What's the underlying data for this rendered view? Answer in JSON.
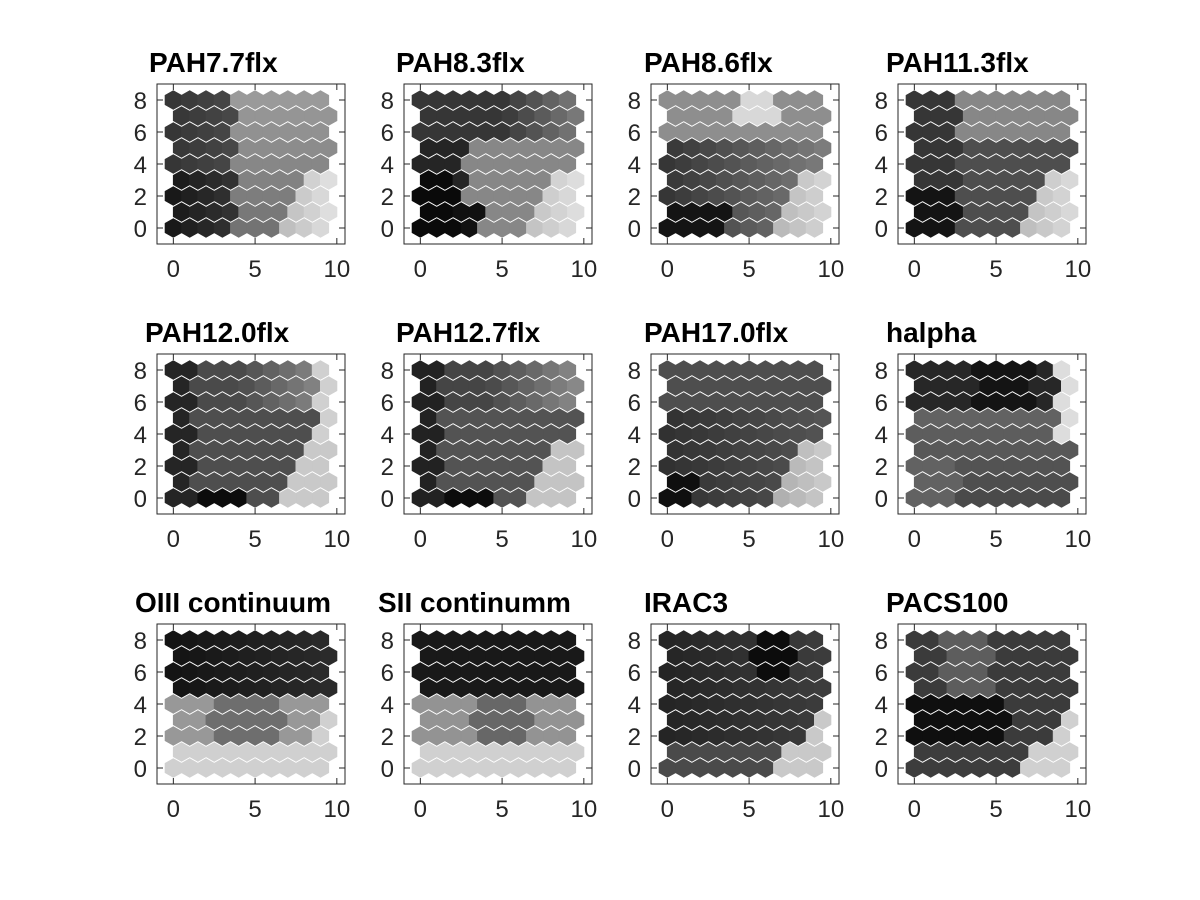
{
  "chart_data": {
    "type": "heatmap",
    "colormap": "gray",
    "grid": false,
    "panels": [
      {
        "title": "PAH7.7flx",
        "xlim": [
          -1,
          10.5
        ],
        "ylim": [
          -1,
          9
        ],
        "xticks": [
          0,
          5,
          10
        ],
        "yticks": [
          0,
          2,
          4,
          6,
          8
        ]
      },
      {
        "title": "PAH8.3flx",
        "xlim": [
          -1,
          10.5
        ],
        "ylim": [
          -1,
          9
        ],
        "xticks": [
          0,
          5,
          10
        ],
        "yticks": [
          0,
          2,
          4,
          6,
          8
        ]
      },
      {
        "title": "PAH8.6flx",
        "xlim": [
          -1,
          10.5
        ],
        "ylim": [
          -1,
          9
        ],
        "xticks": [
          0,
          5,
          10
        ],
        "yticks": [
          0,
          2,
          4,
          6,
          8
        ]
      },
      {
        "title": "PAH11.3flx",
        "xlim": [
          -1,
          10.5
        ],
        "ylim": [
          -1,
          9
        ],
        "xticks": [
          0,
          5,
          10
        ],
        "yticks": [
          0,
          2,
          4,
          6,
          8
        ]
      },
      {
        "title": "PAH12.0flx",
        "xlim": [
          -1,
          10.5
        ],
        "ylim": [
          -1,
          9
        ],
        "xticks": [
          0,
          5,
          10
        ],
        "yticks": [
          0,
          2,
          4,
          6,
          8
        ]
      },
      {
        "title": "PAH12.7flx",
        "xlim": [
          -1,
          10.5
        ],
        "ylim": [
          -1,
          9
        ],
        "xticks": [
          0,
          5,
          10
        ],
        "yticks": [
          0,
          2,
          4,
          6,
          8
        ]
      },
      {
        "title": "PAH17.0flx",
        "xlim": [
          -1,
          10.5
        ],
        "ylim": [
          -1,
          9
        ],
        "xticks": [
          0,
          5,
          10
        ],
        "yticks": [
          0,
          2,
          4,
          6,
          8
        ]
      },
      {
        "title": "halpha",
        "xlim": [
          -1,
          10.5
        ],
        "ylim": [
          -1,
          9
        ],
        "xticks": [
          0,
          5,
          10
        ],
        "yticks": [
          0,
          2,
          4,
          6,
          8
        ]
      },
      {
        "title": "OIII continuum",
        "xlim": [
          -1,
          10.5
        ],
        "ylim": [
          -1,
          9
        ],
        "xticks": [
          0,
          5,
          10
        ],
        "yticks": [
          0,
          2,
          4,
          6,
          8
        ]
      },
      {
        "title": "SII continumm",
        "xlim": [
          -1,
          10.5
        ],
        "ylim": [
          -1,
          9
        ],
        "xticks": [
          0,
          5,
          10
        ],
        "yticks": [
          0,
          2,
          4,
          6,
          8
        ]
      },
      {
        "title": "IRAC3",
        "xlim": [
          -1,
          10.5
        ],
        "ylim": [
          -1,
          9
        ],
        "xticks": [
          0,
          5,
          10
        ],
        "yticks": [
          0,
          2,
          4,
          6,
          8
        ]
      },
      {
        "title": "PACS100",
        "xlim": [
          -1,
          10.5
        ],
        "ylim": [
          -1,
          9
        ],
        "xticks": [
          0,
          5,
          10
        ],
        "yticks": [
          0,
          2,
          4,
          6,
          8
        ]
      }
    ]
  }
}
